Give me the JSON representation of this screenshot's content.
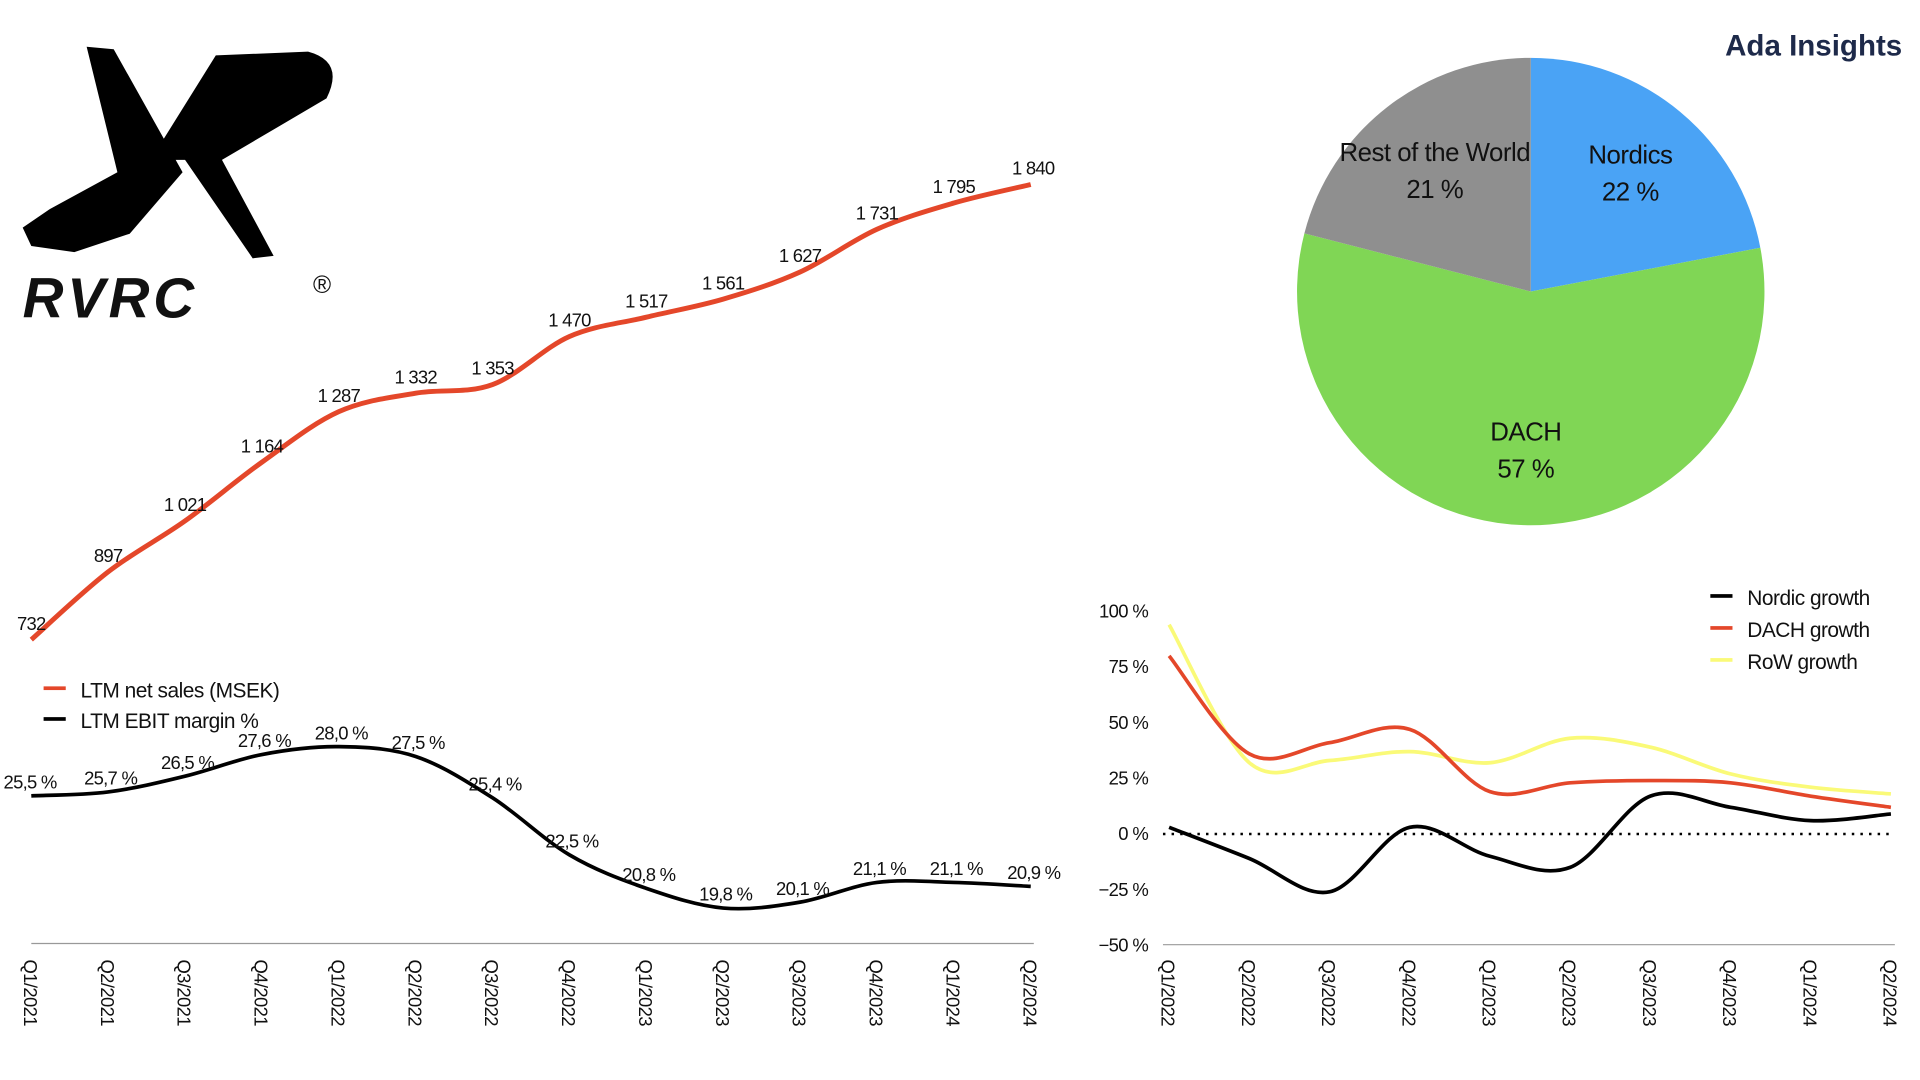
{
  "brand": "Ada Insights",
  "logo": {
    "text": "RVRC",
    "registered": "®"
  },
  "colors": {
    "sales": "#e4472a",
    "ebit": "#000000",
    "nordics": "#4aa3f5",
    "dach": "#80d655",
    "row": "#8f8f8f",
    "row_growth": "#fafa78",
    "dach_growth": "#e4472a",
    "nordic_growth": "#000000"
  },
  "chart_data": [
    {
      "type": "line",
      "categories": [
        "Q1/2021",
        "Q2/2021",
        "Q3/2021",
        "Q4/2021",
        "Q1/2022",
        "Q2/2022",
        "Q3/2022",
        "Q4/2022",
        "Q1/2023",
        "Q2/2023",
        "Q3/2023",
        "Q4/2023",
        "Q1/2024",
        "Q2/2024"
      ],
      "legend": "bottom-left",
      "series": [
        {
          "name": "LTM net sales (MSEK)",
          "values": [
            732,
            897,
            1021,
            1164,
            1287,
            1332,
            1353,
            1470,
            1517,
            1561,
            1627,
            1731,
            1795,
            1840
          ],
          "labels": [
            "732",
            "897",
            "1 021",
            "1 164",
            "1 287",
            "1 332",
            "1 353",
            "1 470",
            "1 517",
            "1 561",
            "1 627",
            "1 731",
            "1 795",
            "1 840"
          ]
        },
        {
          "name": "LTM EBIT margin %",
          "values": [
            25.5,
            25.7,
            26.5,
            27.6,
            28.0,
            27.5,
            25.4,
            22.5,
            20.8,
            19.8,
            20.1,
            21.1,
            21.1,
            20.9
          ],
          "labels": [
            "25,5 %",
            "25,7 %",
            "26,5 %",
            "27,6 %",
            "28,0 %",
            "27,5 %",
            "25,4 %",
            "22,5 %",
            "20,8 %",
            "19,8 %",
            "20,1 %",
            "21,1 %",
            "21,1 %",
            "20,9 %"
          ]
        }
      ]
    },
    {
      "type": "pie",
      "slices": [
        {
          "name": "Nordics",
          "value": 22,
          "label": "22 %"
        },
        {
          "name": "DACH",
          "value": 57,
          "label": "57 %"
        },
        {
          "name": "Rest of the World",
          "value": 21,
          "label": "21 %"
        }
      ]
    },
    {
      "type": "line",
      "categories": [
        "Q1/2022",
        "Q2/2022",
        "Q3/2022",
        "Q4/2022",
        "Q1/2023",
        "Q2/2023",
        "Q3/2023",
        "Q4/2023",
        "Q1/2024",
        "Q2/2024"
      ],
      "ylim": [
        -50,
        100
      ],
      "yticks": [
        "100 %",
        "75 %",
        "50 %",
        "25 %",
        "0 %",
        "−25 %",
        "−50 %"
      ],
      "ytick_values": [
        100,
        75,
        50,
        25,
        0,
        -25,
        -50
      ],
      "legend": "top-right",
      "series": [
        {
          "name": "Nordic growth",
          "values": [
            3,
            -11,
            -26,
            3,
            -10,
            -15,
            17,
            12,
            6,
            9
          ]
        },
        {
          "name": "DACH growth",
          "values": [
            80,
            36,
            41,
            47,
            19,
            23,
            24,
            23,
            17,
            12
          ]
        },
        {
          "name": "RoW growth",
          "values": [
            94,
            32,
            33,
            37,
            32,
            43,
            39,
            27,
            21,
            18
          ]
        }
      ]
    }
  ]
}
